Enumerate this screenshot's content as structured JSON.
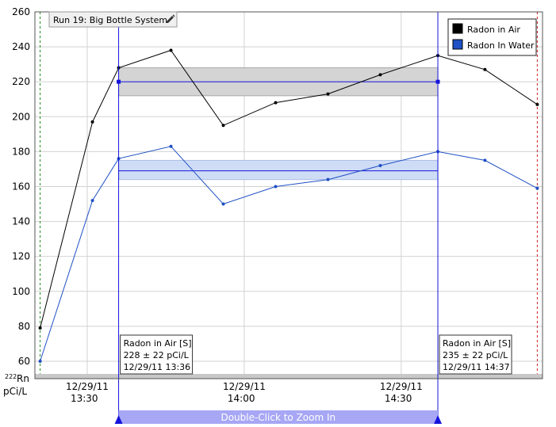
{
  "chart_data": {
    "type": "line",
    "run_label": "Run 19: Big Bottle System",
    "x_tick_labels": [
      {
        "time": "13:30",
        "line1": "12/29/11",
        "line2": "13:30"
      },
      {
        "time": "14:00",
        "line1": "12/29/11",
        "line2": "14:00"
      },
      {
        "time": "14:30",
        "line1": "12/29/11",
        "line2": "14:30"
      }
    ],
    "xlim": [
      "13:20",
      "14:57"
    ],
    "ylim": [
      50,
      260
    ],
    "y_ticks": [
      60,
      80,
      100,
      120,
      140,
      160,
      180,
      200,
      220,
      240,
      260
    ],
    "ylabel_superscript": "222",
    "ylabel_rn": "Rn",
    "ylabel_units": "pCi/L",
    "grid": true,
    "legend_position": "top-right",
    "series": [
      {
        "name": "Radon in Air",
        "color": "#000000",
        "points": [
          {
            "x": "13:21",
            "y": 79
          },
          {
            "x": "13:31",
            "y": 197
          },
          {
            "x": "13:36",
            "y": 228
          },
          {
            "x": "13:46",
            "y": 238
          },
          {
            "x": "13:56",
            "y": 195
          },
          {
            "x": "14:06",
            "y": 208
          },
          {
            "x": "14:16",
            "y": 213
          },
          {
            "x": "14:26",
            "y": 224
          },
          {
            "x": "14:37",
            "y": 235
          },
          {
            "x": "14:46",
            "y": 227
          },
          {
            "x": "14:56",
            "y": 207
          }
        ],
        "mean": 220,
        "band": [
          212,
          228
        ]
      },
      {
        "name": "Radon In Water",
        "color": "#1e4fc4",
        "points": [
          {
            "x": "13:21",
            "y": 60
          },
          {
            "x": "13:31",
            "y": 152
          },
          {
            "x": "13:36",
            "y": 176
          },
          {
            "x": "13:46",
            "y": 183
          },
          {
            "x": "13:56",
            "y": 150
          },
          {
            "x": "14:06",
            "y": 160
          },
          {
            "x": "14:16",
            "y": 164
          },
          {
            "x": "14:26",
            "y": 172
          },
          {
            "x": "14:37",
            "y": 180
          },
          {
            "x": "14:46",
            "y": 175
          },
          {
            "x": "14:56",
            "y": 159
          }
        ],
        "mean": 169,
        "band": [
          164,
          175
        ]
      }
    ],
    "markers": {
      "start_time": "13:21",
      "end_time": "14:56",
      "start_color": "#1a8a1a",
      "end_color": "#cc2020"
    },
    "cursors": [
      {
        "time": "13:36",
        "line1": "Radon in Air [S]",
        "line2": "228 ± 22 pCi/L",
        "line3": "12/29/11 13:36"
      },
      {
        "time": "14:37",
        "line1": "Radon in Air [S]",
        "line2": "235 ± 22 pCi/L",
        "line3": "12/29/11 14:37"
      }
    ],
    "zoom_bar_label": "Double-Click to Zoom In",
    "colors": {
      "cursor": "#1414dc",
      "band_air": "#d4d4d4",
      "band_water": "#cfdcf5",
      "zoom_bar": "#a7a7f5",
      "grid": "#d2d2d2"
    },
    "icons": {
      "run_label": "pencil-icon"
    }
  }
}
